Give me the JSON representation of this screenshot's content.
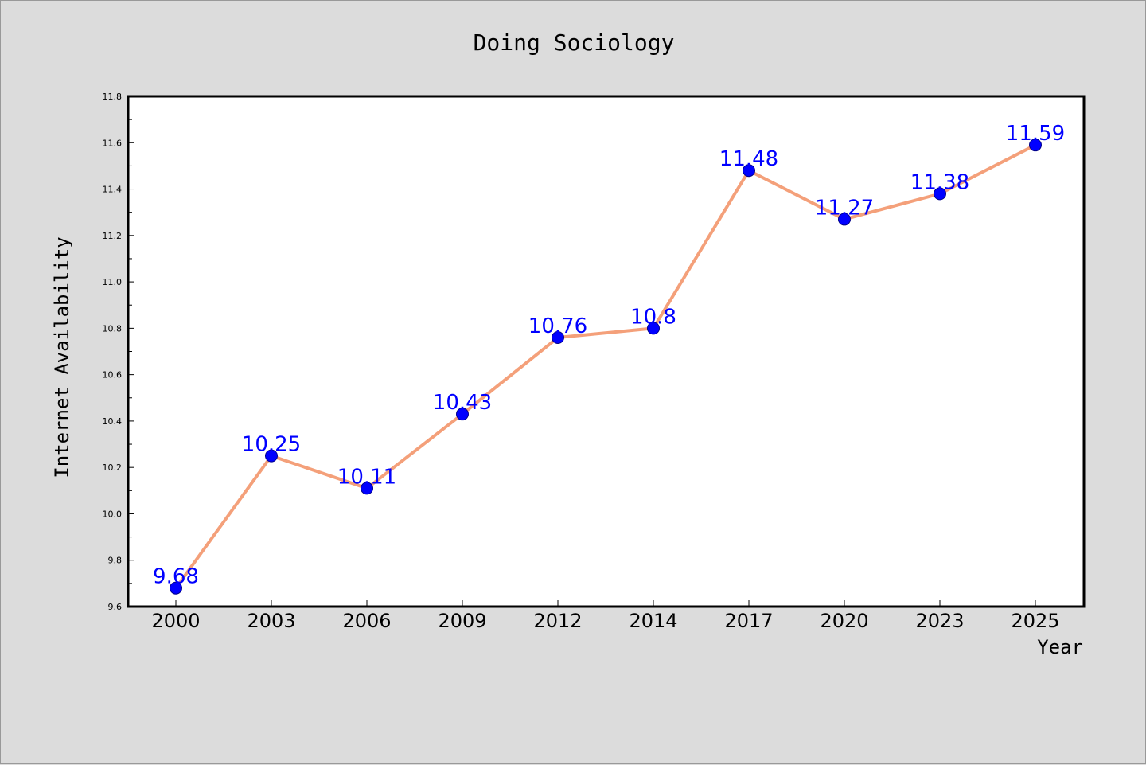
{
  "chart_data": {
    "type": "line",
    "title": "Doing Sociology",
    "xlabel": "Year",
    "ylabel": "Internet Availability",
    "categories": [
      "2000",
      "2003",
      "2006",
      "2009",
      "2012",
      "2014",
      "2017",
      "2020",
      "2023",
      "2025"
    ],
    "series": [
      {
        "values": [
          9.68,
          10.25,
          10.11,
          10.43,
          10.76,
          10.8,
          11.48,
          11.27,
          11.38,
          11.59
        ]
      }
    ],
    "data_labels": [
      "9.68",
      "10.25",
      "10.11",
      "10.43",
      "10.76",
      "10.8",
      "11.48",
      "11.27",
      "11.38",
      "11.59"
    ],
    "ylim": [
      9.6,
      11.8
    ],
    "y_ticks": [
      "9.6",
      "9.8",
      "10.0",
      "10.2",
      "10.4",
      "10.6",
      "10.8",
      "11.0",
      "11.2",
      "11.4",
      "11.6",
      "11.8"
    ],
    "grid": false,
    "legend": false,
    "colors": {
      "line": "#f4a07a",
      "marker": "#0000ff",
      "marker_edge": "#00008b",
      "data_label": "#0000ff",
      "plot_background": "#ffffff",
      "figure_background": "#dcdcdc"
    }
  }
}
